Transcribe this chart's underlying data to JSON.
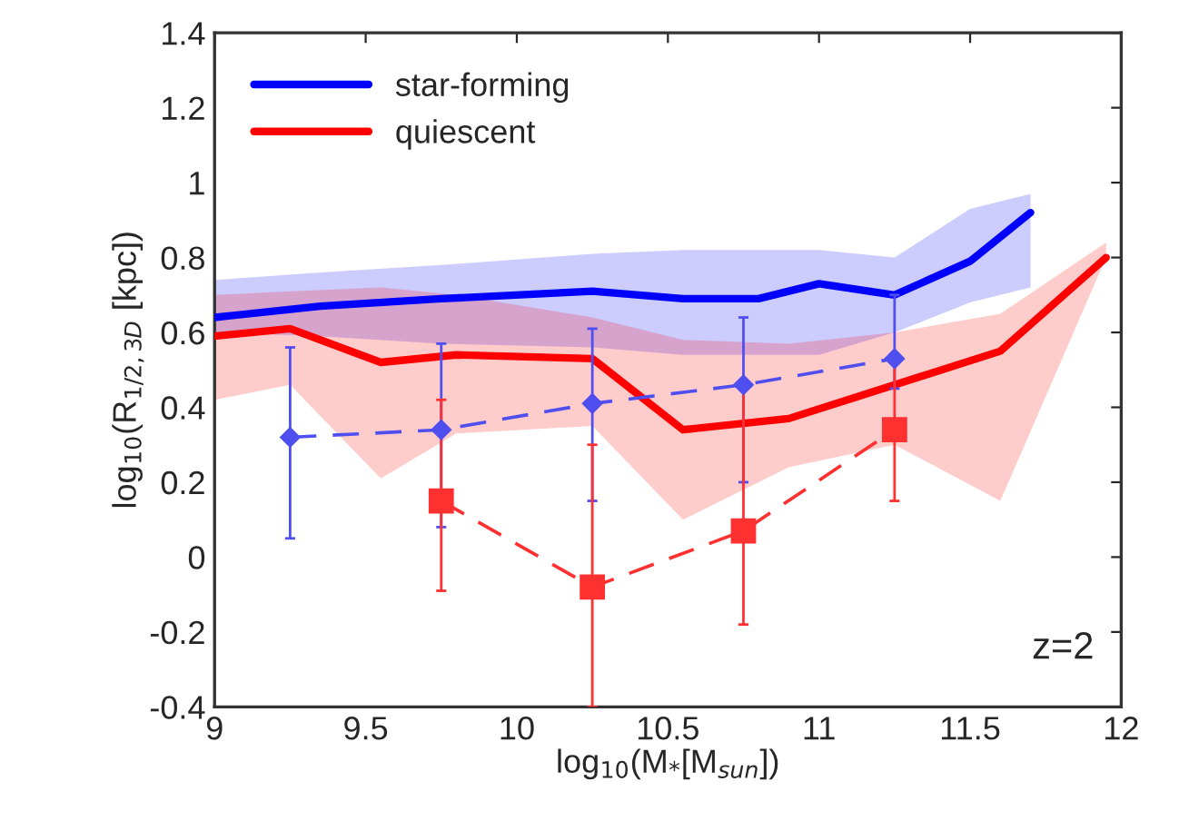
{
  "chart_data": {
    "type": "line",
    "xlabel": "log$_{10}$(M$_{*}$[M$_{sun}$])",
    "ylabel": "log$_{10}$(R$_{1/2,3D}$ [kpc])",
    "xlim": [
      9,
      12
    ],
    "xticks": [
      9,
      9.5,
      10,
      10.5,
      11,
      11.5,
      12
    ],
    "ylim": [
      -0.4,
      1.4
    ],
    "yticks": [
      -0.4,
      -0.2,
      0,
      0.2,
      0.4,
      0.6,
      0.8,
      1,
      1.2,
      1.4
    ],
    "grid": false,
    "legend": "top left",
    "marker": "none",
    "line_style": "solid",
    "annotations": [
      "z=2"
    ],
    "series": [
      {
        "name": "star-forming",
        "color": "#0000ff",
        "x": [
          9,
          9.35,
          9.75,
          10.25,
          10.55,
          10.8,
          11.0,
          11.25,
          11.5,
          11.7
        ],
        "values": [
          0.64,
          0.67,
          0.69,
          0.71,
          0.69,
          0.69,
          0.73,
          0.7,
          0.79,
          0.92
        ],
        "upper": [
          0.74,
          0.76,
          0.78,
          0.81,
          0.82,
          0.82,
          0.82,
          0.8,
          0.93,
          0.97
        ],
        "lower": [
          0.6,
          0.59,
          0.57,
          0.56,
          0.54,
          0.54,
          0.54,
          0.6,
          0.68,
          0.72
        ]
      },
      {
        "name": "quiescent",
        "color": "#ff0000",
        "x": [
          9,
          9.25,
          9.55,
          9.8,
          10.25,
          10.55,
          10.9,
          11.25,
          11.6,
          11.95
        ],
        "values": [
          0.59,
          0.61,
          0.52,
          0.54,
          0.53,
          0.34,
          0.37,
          0.46,
          0.55,
          0.8
        ],
        "upper": [
          0.7,
          0.71,
          0.72,
          0.7,
          0.64,
          0.58,
          0.57,
          0.6,
          0.65,
          0.84
        ],
        "lower": [
          0.42,
          0.46,
          0.21,
          0.33,
          0.35,
          0.1,
          0.24,
          0.3,
          0.15,
          0.8
        ]
      },
      {
        "color": "#4f4fef",
        "x": [
          9.25,
          9.75,
          10.25,
          10.75,
          11.25
        ],
        "values": [
          0.32,
          0.34,
          0.41,
          0.46,
          0.53
        ],
        "errors": [
          [
            0.05,
            0.56
          ],
          [
            0.08,
            0.57
          ],
          [
            0.15,
            0.61
          ],
          [
            0.2,
            0.64
          ],
          [
            0.45,
            0.7
          ]
        ],
        "marker": "diamond",
        "line_style": "dashed"
      },
      {
        "color": "#ff3030",
        "x": [
          9.75,
          10.25,
          10.75,
          11.25
        ],
        "values": [
          0.15,
          -0.08,
          0.07,
          0.34
        ],
        "errors": [
          [
            -0.09,
            0.42
          ],
          [
            -0.4,
            0.3
          ],
          [
            -0.18,
            0.46
          ],
          [
            0.15,
            0.54
          ]
        ],
        "marker": "square",
        "line_style": "dashed"
      }
    ]
  }
}
